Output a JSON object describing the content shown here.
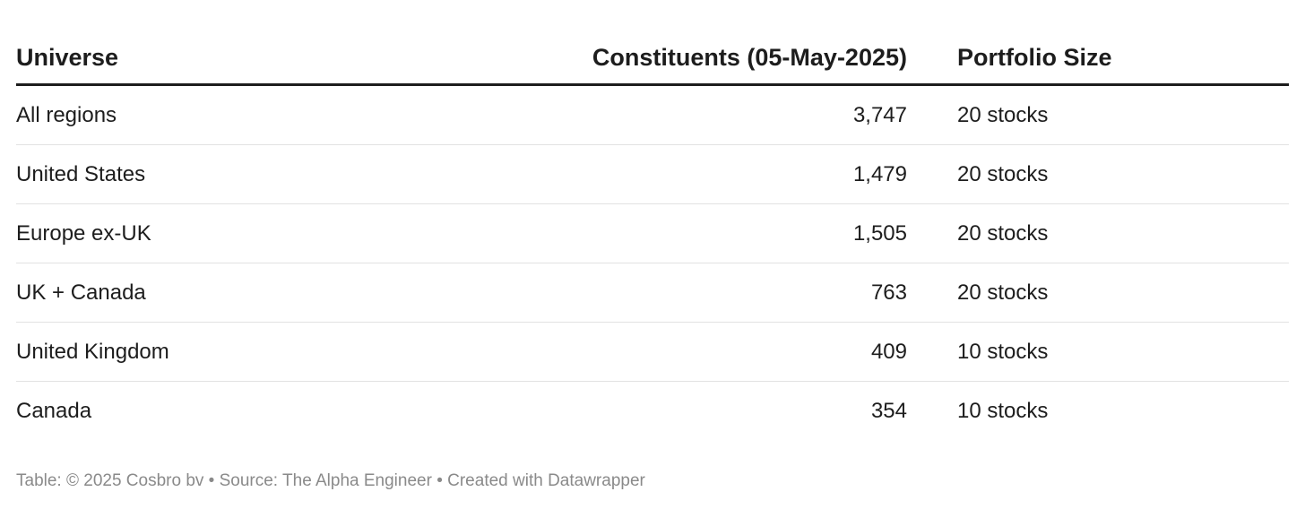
{
  "chart_data": {
    "type": "table",
    "columns": [
      "Universe",
      "Constituents (05-May-2025)",
      "Portfolio Size"
    ],
    "rows": [
      [
        "All regions",
        "3,747",
        "20 stocks"
      ],
      [
        "United States",
        "1,479",
        "20 stocks"
      ],
      [
        "Europe ex-UK",
        "1,505",
        "20 stocks"
      ],
      [
        "UK + Canada",
        "763",
        "20 stocks"
      ],
      [
        "United Kingdom",
        "409",
        "10 stocks"
      ],
      [
        "Canada",
        "354",
        "10 stocks"
      ]
    ],
    "footer": "Table: © 2025 Cosbro bv  • Source: The Alpha Engineer • Created with Datawrapper"
  }
}
